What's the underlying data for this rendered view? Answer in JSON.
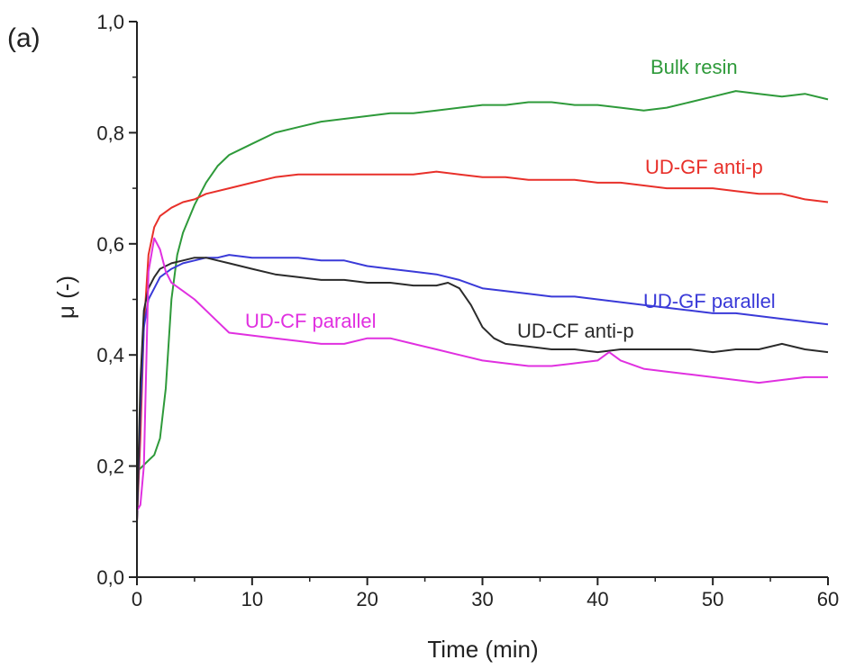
{
  "panel_label": "(a)",
  "chart_data": {
    "type": "line",
    "title": "",
    "xlabel": "Time (min)",
    "ylabel": "μ (-)",
    "xlim": [
      0,
      60
    ],
    "ylim": [
      0.0,
      1.0
    ],
    "xticks": [
      0,
      10,
      20,
      30,
      40,
      50,
      60
    ],
    "xtick_labels": [
      "0",
      "10",
      "20",
      "30",
      "40",
      "50",
      "60"
    ],
    "yticks": [
      0.0,
      0.2,
      0.4,
      0.6,
      0.8,
      1.0
    ],
    "ytick_labels": [
      "0,0",
      "0,2",
      "0,4",
      "0,6",
      "0,8",
      "1,0"
    ],
    "grid": false,
    "legend": "inline labels",
    "series": [
      {
        "name": "Bulk resin",
        "color": "#2e9a3a",
        "x": [
          0,
          0.5,
          1,
          1.5,
          2,
          2.5,
          3,
          3.5,
          4,
          5,
          6,
          7,
          8,
          10,
          12,
          14,
          16,
          18,
          20,
          22,
          24,
          26,
          28,
          30,
          32,
          34,
          36,
          38,
          40,
          42,
          44,
          46,
          48,
          50,
          52,
          54,
          56,
          58,
          60
        ],
        "y": [
          0.19,
          0.2,
          0.21,
          0.22,
          0.25,
          0.34,
          0.5,
          0.58,
          0.62,
          0.67,
          0.71,
          0.74,
          0.76,
          0.78,
          0.8,
          0.81,
          0.82,
          0.825,
          0.83,
          0.835,
          0.835,
          0.84,
          0.845,
          0.85,
          0.85,
          0.855,
          0.855,
          0.85,
          0.85,
          0.845,
          0.84,
          0.845,
          0.855,
          0.865,
          0.875,
          0.87,
          0.865,
          0.87,
          0.86
        ]
      },
      {
        "name": "UD-GF anti-p",
        "color": "#e8302a",
        "x": [
          0,
          0.3,
          0.6,
          1,
          1.5,
          2,
          3,
          4,
          5,
          6,
          8,
          10,
          12,
          14,
          16,
          18,
          20,
          22,
          24,
          26,
          28,
          30,
          32,
          34,
          36,
          38,
          40,
          42,
          44,
          46,
          48,
          50,
          52,
          54,
          56,
          58,
          60
        ],
        "y": [
          0.1,
          0.25,
          0.45,
          0.58,
          0.63,
          0.65,
          0.665,
          0.675,
          0.68,
          0.69,
          0.7,
          0.71,
          0.72,
          0.725,
          0.725,
          0.725,
          0.725,
          0.725,
          0.725,
          0.73,
          0.725,
          0.72,
          0.72,
          0.715,
          0.715,
          0.715,
          0.71,
          0.71,
          0.705,
          0.7,
          0.7,
          0.7,
          0.695,
          0.69,
          0.69,
          0.68,
          0.675
        ]
      },
      {
        "name": "UD-GF parallel",
        "color": "#3a3ad8",
        "x": [
          0,
          0.3,
          0.6,
          1,
          1.5,
          2,
          3,
          4,
          5,
          6,
          7,
          8,
          10,
          12,
          14,
          16,
          18,
          20,
          22,
          24,
          26,
          28,
          30,
          32,
          34,
          36,
          38,
          40,
          42,
          44,
          46,
          48,
          50,
          52,
          54,
          56,
          58,
          60
        ],
        "y": [
          0.1,
          0.3,
          0.45,
          0.5,
          0.52,
          0.54,
          0.555,
          0.565,
          0.57,
          0.575,
          0.575,
          0.58,
          0.575,
          0.575,
          0.575,
          0.57,
          0.57,
          0.56,
          0.555,
          0.55,
          0.545,
          0.535,
          0.52,
          0.515,
          0.51,
          0.505,
          0.505,
          0.5,
          0.495,
          0.49,
          0.485,
          0.48,
          0.475,
          0.475,
          0.47,
          0.465,
          0.46,
          0.455
        ]
      },
      {
        "name": "UD-CF anti-p",
        "color": "#2b2b2b",
        "x": [
          0,
          0.3,
          0.6,
          1,
          1.5,
          2,
          3,
          4,
          5,
          6,
          7,
          8,
          10,
          12,
          14,
          16,
          18,
          20,
          22,
          24,
          26,
          27,
          28,
          29,
          30,
          31,
          32,
          34,
          36,
          38,
          40,
          42,
          44,
          46,
          48,
          50,
          52,
          54,
          56,
          58,
          60
        ],
        "y": [
          0.1,
          0.35,
          0.48,
          0.52,
          0.54,
          0.555,
          0.565,
          0.57,
          0.575,
          0.575,
          0.57,
          0.565,
          0.555,
          0.545,
          0.54,
          0.535,
          0.535,
          0.53,
          0.53,
          0.525,
          0.525,
          0.53,
          0.52,
          0.49,
          0.45,
          0.43,
          0.42,
          0.415,
          0.41,
          0.41,
          0.405,
          0.41,
          0.41,
          0.41,
          0.41,
          0.405,
          0.41,
          0.41,
          0.42,
          0.41,
          0.405
        ]
      },
      {
        "name": "UD-CF parallel",
        "color": "#e030e0",
        "x": [
          0,
          0.3,
          0.6,
          1,
          1.5,
          2,
          2.5,
          3,
          4,
          5,
          6,
          7,
          8,
          10,
          12,
          14,
          16,
          18,
          20,
          22,
          24,
          26,
          28,
          30,
          32,
          34,
          36,
          38,
          40,
          41,
          42,
          44,
          46,
          48,
          50,
          52,
          54,
          56,
          58,
          60
        ],
        "y": [
          0.12,
          0.13,
          0.2,
          0.55,
          0.61,
          0.59,
          0.55,
          0.53,
          0.515,
          0.5,
          0.48,
          0.46,
          0.44,
          0.435,
          0.43,
          0.425,
          0.42,
          0.42,
          0.43,
          0.43,
          0.42,
          0.41,
          0.4,
          0.39,
          0.385,
          0.38,
          0.38,
          0.385,
          0.39,
          0.405,
          0.39,
          0.375,
          0.37,
          0.365,
          0.36,
          0.355,
          0.35,
          0.355,
          0.36,
          0.36
        ]
      }
    ]
  }
}
